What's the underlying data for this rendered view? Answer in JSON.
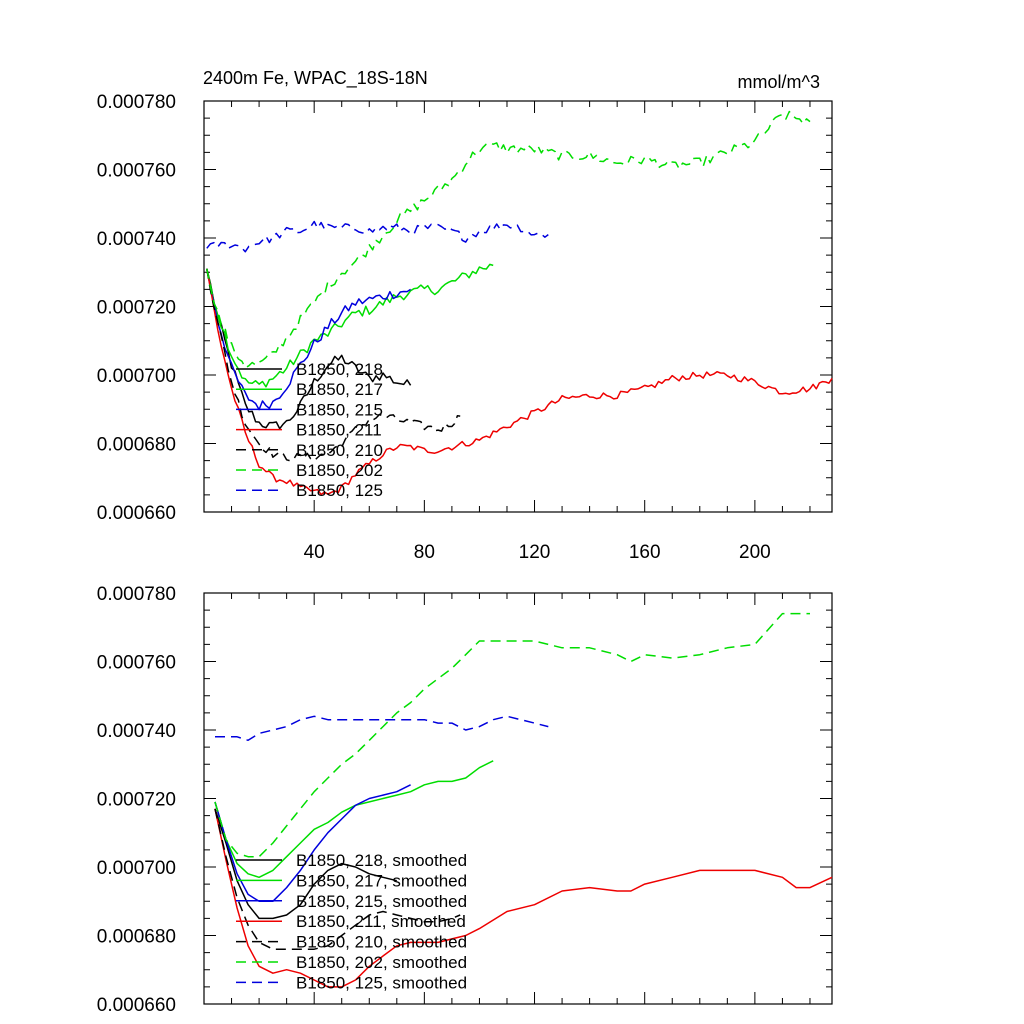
{
  "chart_data": [
    {
      "type": "line",
      "title": "2400m Fe, WPAC_18S-18N",
      "units": "mmol/m^3",
      "xlabel": "",
      "ylabel": "",
      "xlim": [
        0,
        228
      ],
      "ylim": [
        0.00066,
        0.00078
      ],
      "xticks": [
        40,
        80,
        120,
        160,
        200
      ],
      "xtick_labels": [
        "40",
        "80",
        "120",
        "160",
        "200"
      ],
      "yticks": [
        0.00066,
        0.00068,
        0.0007,
        0.00072,
        0.00074,
        0.00076,
        0.00078
      ],
      "ytick_labels": [
        "0.000660",
        "0.000680",
        "0.000700",
        "0.000720",
        "0.000740",
        "0.000760",
        "0.000780"
      ],
      "grid": false,
      "legend_position": "bottom-left",
      "series": [
        {
          "name": "B1850, 218",
          "color": "#000000",
          "dash": "solid",
          "x": [
            1,
            5,
            10,
            15,
            20,
            25,
            30,
            35,
            40,
            45,
            50,
            55,
            60,
            65,
            70,
            75
          ],
          "y": [
            0.000731,
            0.000717,
            0.000703,
            0.000691,
            0.000686,
            0.000685,
            0.000686,
            0.000691,
            0.000698,
            0.000703,
            0.000705,
            0.000702,
            0.000699,
            0.0007,
            0.000698,
            0.000697
          ],
          "jitter": 1.5e-06
        },
        {
          "name": "B1850, 217",
          "color": "#00dd00",
          "dash": "solid",
          "x": [
            1,
            5,
            10,
            15,
            20,
            25,
            30,
            35,
            40,
            45,
            50,
            55,
            60,
            65,
            70,
            75,
            80,
            85,
            90,
            95,
            100,
            105
          ],
          "y": [
            0.000731,
            0.000718,
            0.000706,
            0.000698,
            0.000697,
            0.000699,
            0.000702,
            0.000706,
            0.00071,
            0.000712,
            0.000715,
            0.000718,
            0.000719,
            0.000721,
            0.000723,
            0.000724,
            0.000725,
            0.000725,
            0.000727,
            0.000729,
            0.000731,
            0.000732
          ],
          "jitter": 1.5e-06
        },
        {
          "name": "B1850, 215",
          "color": "#0000dd",
          "dash": "solid",
          "x": [
            1,
            5,
            10,
            15,
            20,
            25,
            30,
            35,
            40,
            45,
            50,
            55,
            60,
            65,
            70,
            75
          ],
          "y": [
            0.000731,
            0.000716,
            0.000702,
            0.000694,
            0.000691,
            0.000692,
            0.000697,
            0.000703,
            0.000709,
            0.000714,
            0.000718,
            0.000721,
            0.000722,
            0.000723,
            0.000724,
            0.000725
          ],
          "jitter": 1.5e-06
        },
        {
          "name": "B1850, 211",
          "color": "#ee0000",
          "dash": "solid",
          "x": [
            1,
            5,
            10,
            15,
            20,
            25,
            30,
            35,
            40,
            45,
            50,
            55,
            60,
            65,
            70,
            75,
            80,
            85,
            90,
            95,
            100,
            110,
            120,
            130,
            140,
            150,
            160,
            170,
            180,
            190,
            200,
            210,
            220,
            228
          ],
          "y": [
            0.000731,
            0.000713,
            0.000696,
            0.000683,
            0.000674,
            0.00067,
            0.000669,
            0.000667,
            0.000666,
            0.000665,
            0.000667,
            0.000671,
            0.000674,
            0.000677,
            0.000679,
            0.000679,
            0.000678,
            0.000678,
            0.000679,
            0.00068,
            0.000681,
            0.000685,
            0.000689,
            0.000693,
            0.000694,
            0.000694,
            0.000696,
            0.000699,
            0.0007,
            0.0007,
            0.000698,
            0.000695,
            0.000696,
            0.000699
          ],
          "jitter": 1e-06
        },
        {
          "name": "B1850, 210",
          "color": "#000000",
          "dash": "dashed",
          "x": [
            1,
            5,
            10,
            15,
            20,
            25,
            30,
            35,
            40,
            45,
            50,
            55,
            60,
            65,
            70,
            75,
            80,
            85,
            90,
            93
          ],
          "y": [
            0.000731,
            0.000715,
            0.000698,
            0.000686,
            0.00068,
            0.000677,
            0.000676,
            0.000676,
            0.000676,
            0.000677,
            0.00068,
            0.000684,
            0.000687,
            0.000688,
            0.000687,
            0.000686,
            0.000685,
            0.000684,
            0.000686,
            0.000688
          ],
          "jitter": 1.2e-06
        },
        {
          "name": "B1850, 202",
          "color": "#00dd00",
          "dash": "dashed",
          "x": [
            1,
            5,
            10,
            15,
            20,
            25,
            30,
            35,
            40,
            45,
            50,
            55,
            60,
            65,
            70,
            75,
            80,
            85,
            90,
            95,
            100,
            105,
            110,
            120,
            130,
            140,
            150,
            160,
            170,
            180,
            190,
            200,
            210,
            220
          ],
          "y": [
            0.000731,
            0.000718,
            0.000708,
            0.000703,
            0.000703,
            0.000706,
            0.000711,
            0.000716,
            0.000721,
            0.000726,
            0.00073,
            0.000733,
            0.000737,
            0.000741,
            0.000745,
            0.000748,
            0.000751,
            0.000754,
            0.000757,
            0.000762,
            0.000766,
            0.000767,
            0.000766,
            0.000766,
            0.000764,
            0.000764,
            0.000762,
            0.000763,
            0.000761,
            0.000762,
            0.000765,
            0.000768,
            0.000776,
            0.000774
          ],
          "jitter": 1.5e-06
        },
        {
          "name": "B1850, 125",
          "color": "#0000dd",
          "dash": "dashed",
          "x": [
            1,
            5,
            10,
            15,
            20,
            25,
            30,
            35,
            40,
            45,
            50,
            55,
            60,
            65,
            70,
            75,
            80,
            85,
            90,
            95,
            100,
            105,
            110,
            115,
            120,
            125
          ],
          "y": [
            0.000737,
            0.000738,
            0.000738,
            0.000737,
            0.000739,
            0.00074,
            0.000742,
            0.000742,
            0.000744,
            0.000743,
            0.000743,
            0.000743,
            0.000742,
            0.000743,
            0.000743,
            0.000742,
            0.000743,
            0.000743,
            0.000742,
            0.00074,
            0.000742,
            0.000743,
            0.000744,
            0.000743,
            0.000741,
            0.000741
          ],
          "jitter": 1.2e-06
        }
      ]
    },
    {
      "type": "line",
      "title": "",
      "xlabel": "",
      "ylabel": "",
      "xlim": [
        0,
        228
      ],
      "ylim": [
        0.00066,
        0.00078
      ],
      "xticks": [
        40,
        80,
        120,
        160,
        200
      ],
      "xtick_labels": [],
      "yticks": [
        0.00066,
        0.00068,
        0.0007,
        0.00072,
        0.00074,
        0.00076,
        0.00078
      ],
      "ytick_labels": [
        "0.000660",
        "0.000680",
        "0.000700",
        "0.000720",
        "0.000740",
        "0.000760",
        "0.000780"
      ],
      "grid": false,
      "legend_position": "bottom-left",
      "series": [
        {
          "name": "B1850, 218, smoothed",
          "color": "#000000",
          "dash": "solid",
          "x": [
            4,
            8,
            12,
            16,
            20,
            25,
            30,
            35,
            40,
            45,
            50,
            55,
            60,
            65,
            70
          ],
          "y": [
            0.000717,
            0.000707,
            0.000696,
            0.000689,
            0.000685,
            0.000685,
            0.000686,
            0.000689,
            0.000695,
            0.000699,
            0.000701,
            0.0007,
            0.000698,
            0.000697,
            0.000696
          ]
        },
        {
          "name": "B1850, 217, smoothed",
          "color": "#00dd00",
          "dash": "solid",
          "x": [
            4,
            8,
            12,
            16,
            20,
            25,
            30,
            35,
            40,
            45,
            50,
            55,
            60,
            65,
            70,
            75,
            80,
            85,
            90,
            95,
            100,
            105
          ],
          "y": [
            0.000719,
            0.000708,
            0.000701,
            0.000698,
            0.000697,
            0.000699,
            0.000703,
            0.000707,
            0.000711,
            0.000713,
            0.000716,
            0.000718,
            0.000719,
            0.00072,
            0.000721,
            0.000722,
            0.000724,
            0.000725,
            0.000725,
            0.000726,
            0.000729,
            0.000731
          ]
        },
        {
          "name": "B1850, 215, smoothed",
          "color": "#0000dd",
          "dash": "solid",
          "x": [
            4,
            8,
            12,
            16,
            20,
            25,
            30,
            35,
            40,
            45,
            50,
            55,
            60,
            65,
            70,
            75
          ],
          "y": [
            0.000719,
            0.000708,
            0.000698,
            0.000692,
            0.00069,
            0.00069,
            0.000694,
            0.000699,
            0.000705,
            0.00071,
            0.000714,
            0.000718,
            0.00072,
            0.000721,
            0.000722,
            0.000724
          ]
        },
        {
          "name": "B1850, 211, smoothed",
          "color": "#ee0000",
          "dash": "solid",
          "x": [
            4,
            8,
            12,
            16,
            20,
            25,
            30,
            35,
            40,
            45,
            50,
            55,
            60,
            65,
            70,
            75,
            80,
            85,
            90,
            95,
            100,
            110,
            120,
            130,
            140,
            150,
            155,
            160,
            170,
            180,
            190,
            200,
            210,
            215,
            220,
            228
          ],
          "y": [
            0.000717,
            0.000702,
            0.000688,
            0.000677,
            0.000671,
            0.000669,
            0.00067,
            0.000669,
            0.000667,
            0.000665,
            0.000665,
            0.000667,
            0.000671,
            0.000674,
            0.000677,
            0.000678,
            0.000678,
            0.000678,
            0.000679,
            0.00068,
            0.000682,
            0.000687,
            0.000689,
            0.000693,
            0.000694,
            0.000693,
            0.000693,
            0.000695,
            0.000697,
            0.000699,
            0.000699,
            0.000699,
            0.000697,
            0.000694,
            0.000694,
            0.000697
          ]
        },
        {
          "name": "B1850, 210, smoothed",
          "color": "#000000",
          "dash": "dashed",
          "x": [
            4,
            8,
            12,
            16,
            20,
            25,
            30,
            35,
            40,
            45,
            50,
            55,
            60,
            65,
            70,
            75,
            80,
            85,
            90,
            93
          ],
          "y": [
            0.000717,
            0.000703,
            0.000691,
            0.000683,
            0.000678,
            0.000676,
            0.000676,
            0.000676,
            0.000676,
            0.000677,
            0.00068,
            0.000683,
            0.000686,
            0.000687,
            0.000686,
            0.000685,
            0.000684,
            0.000684,
            0.000685,
            0.000686
          ]
        },
        {
          "name": "B1850, 202, smoothed",
          "color": "#00dd00",
          "dash": "dashed",
          "x": [
            4,
            8,
            12,
            16,
            20,
            25,
            30,
            35,
            40,
            45,
            50,
            55,
            60,
            65,
            70,
            75,
            80,
            85,
            90,
            95,
            100,
            110,
            120,
            130,
            140,
            150,
            155,
            160,
            170,
            180,
            190,
            200,
            210,
            220
          ],
          "y": [
            0.000719,
            0.000708,
            0.000704,
            0.000703,
            0.000703,
            0.000707,
            0.000712,
            0.000717,
            0.000722,
            0.000726,
            0.00073,
            0.000733,
            0.000737,
            0.000741,
            0.000745,
            0.000748,
            0.000752,
            0.000755,
            0.000758,
            0.000762,
            0.000766,
            0.000766,
            0.000766,
            0.000764,
            0.000764,
            0.000762,
            0.00076,
            0.000762,
            0.000761,
            0.000762,
            0.000764,
            0.000765,
            0.000774,
            0.000774
          ]
        },
        {
          "name": "B1850, 125, smoothed",
          "color": "#0000dd",
          "dash": "dashed",
          "x": [
            4,
            8,
            12,
            16,
            20,
            25,
            30,
            35,
            40,
            45,
            50,
            55,
            60,
            65,
            70,
            75,
            80,
            85,
            90,
            95,
            100,
            105,
            110,
            115,
            120,
            125
          ],
          "y": [
            0.000738,
            0.000738,
            0.000738,
            0.000737,
            0.000739,
            0.00074,
            0.000741,
            0.000743,
            0.000744,
            0.000743,
            0.000743,
            0.000743,
            0.000743,
            0.000743,
            0.000743,
            0.000743,
            0.000743,
            0.000742,
            0.000742,
            0.00074,
            0.000741,
            0.000743,
            0.000744,
            0.000743,
            0.000742,
            0.000741
          ]
        }
      ]
    }
  ]
}
